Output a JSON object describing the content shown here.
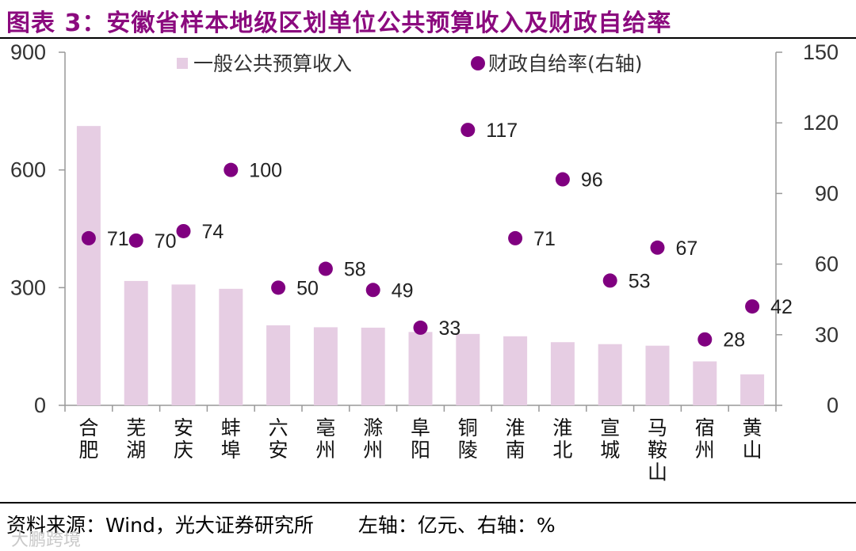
{
  "title": "图表 3：安徽省样本地级区划单位公共预算收入及财政自给率",
  "footer": {
    "source": "资料来源：Wind，光大证券研究所",
    "axis_note": "左轴：亿元、右轴：%"
  },
  "watermark": "大鹏跨境",
  "colors": {
    "bar": "#E6CDE3",
    "dot": "#800080",
    "title": "#8B0A7E"
  },
  "chart_data": {
    "type": "bar+scatter",
    "categories": [
      "合肥",
      "芜湖",
      "安庆",
      "蚌埠",
      "六安",
      "亳州",
      "滁州",
      "阜阳",
      "铜陵",
      "淮南",
      "淮北",
      "宣城",
      "马鞍山",
      "宿州",
      "黄山"
    ],
    "series": [
      {
        "name": "一般公共预算收入",
        "type": "bar",
        "axis": "left",
        "values": [
          712,
          317,
          308,
          297,
          204,
          199,
          198,
          187,
          182,
          176,
          161,
          156,
          152,
          112,
          79
        ]
      },
      {
        "name": "财政自给率(右轴)",
        "type": "scatter",
        "axis": "right",
        "values": [
          71,
          70,
          74,
          100,
          50,
          58,
          49,
          33,
          117,
          71,
          96,
          53,
          67,
          28,
          42
        ]
      }
    ],
    "y_left": {
      "ylim": [
        0,
        900
      ],
      "ticks": [
        "0",
        "300",
        "600",
        "900"
      ]
    },
    "y_right": {
      "ylim": [
        0,
        150
      ],
      "ticks": [
        "0",
        "30",
        "60",
        "90",
        "120",
        "150"
      ]
    },
    "legend": {
      "position": "top",
      "entries": [
        "一般公共预算收入",
        "财政自给率(右轴)"
      ]
    },
    "grid": false
  }
}
